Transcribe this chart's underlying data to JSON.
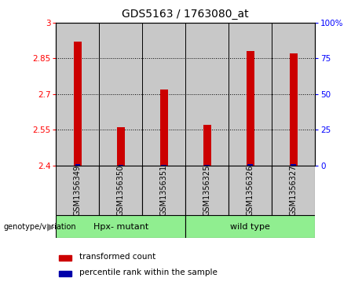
{
  "title": "GDS5163 / 1763080_at",
  "samples": [
    "GSM1356349",
    "GSM1356350",
    "GSM1356351",
    "GSM1356325",
    "GSM1356326",
    "GSM1356327"
  ],
  "red_values": [
    2.92,
    2.56,
    2.72,
    2.57,
    2.88,
    2.87
  ],
  "blue_values": [
    2.406,
    2.403,
    2.402,
    2.403,
    2.406,
    2.404
  ],
  "ylim_left": [
    2.4,
    3.0
  ],
  "ylim_right": [
    0,
    100
  ],
  "yticks_left": [
    2.4,
    2.55,
    2.7,
    2.85,
    3.0
  ],
  "ytick_labels_left": [
    "2.4",
    "2.55",
    "2.7",
    "2.85",
    "3"
  ],
  "yticks_right": [
    0,
    25,
    50,
    75,
    100
  ],
  "ytick_labels_right": [
    "0",
    "25",
    "50",
    "75",
    "100%"
  ],
  "group1_label": "Hpx- mutant",
  "group2_label": "wild type",
  "group1_indices": [
    0,
    1,
    2
  ],
  "group2_indices": [
    3,
    4,
    5
  ],
  "group_color": "#90EE90",
  "bar_area_color": "#C8C8C8",
  "red_bar_width": 0.18,
  "blue_bar_width": 0.12,
  "red_color": "#CC0000",
  "blue_color": "#0000AA",
  "legend_red_label": "transformed count",
  "legend_blue_label": "percentile rank within the sample",
  "genotype_label": "genotype/variation",
  "title_fontsize": 10,
  "tick_fontsize": 7.5,
  "sample_fontsize": 7,
  "legend_fontsize": 7.5,
  "group_fontsize": 8
}
